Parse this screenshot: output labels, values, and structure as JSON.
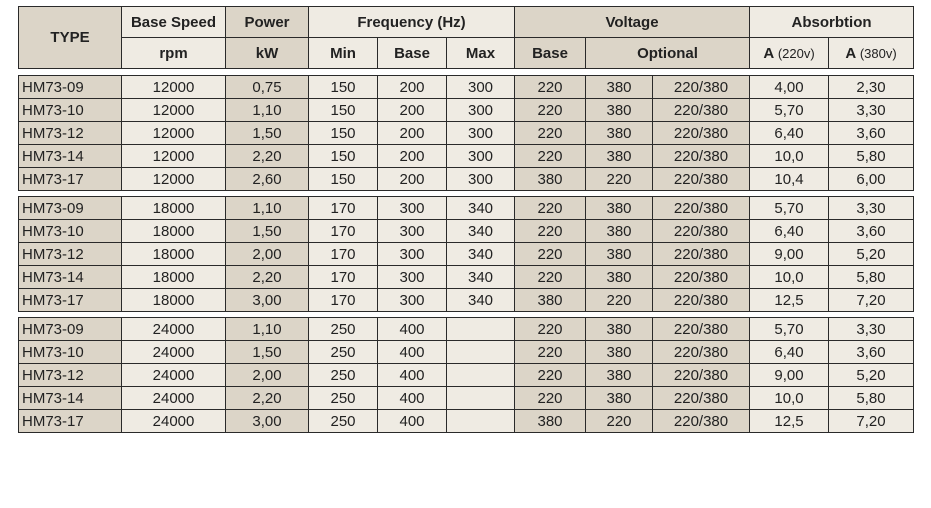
{
  "header": {
    "type": "TYPE",
    "base_speed": "Base Speed",
    "rpm": "rpm",
    "power": "Power",
    "kw": "kW",
    "frequency": "Frequency  (Hz)",
    "freq_min": "Min",
    "freq_base": "Base",
    "freq_max": "Max",
    "voltage": "Voltage",
    "volt_base": "Base",
    "volt_optional": "Optional",
    "absorbtion": "Absorbtion",
    "a220_a": "A",
    "a220_v": "(220v)",
    "a380_a": "A",
    "a380_v": "(380v)"
  },
  "groups": [
    {
      "rows": [
        [
          "HM73-09",
          "12000",
          "0,75",
          "150",
          "200",
          "300",
          "220",
          "380",
          "220/380",
          "4,00",
          "2,30"
        ],
        [
          "HM73-10",
          "12000",
          "1,10",
          "150",
          "200",
          "300",
          "220",
          "380",
          "220/380",
          "5,70",
          "3,30"
        ],
        [
          "HM73-12",
          "12000",
          "1,50",
          "150",
          "200",
          "300",
          "220",
          "380",
          "220/380",
          "6,40",
          "3,60"
        ],
        [
          "HM73-14",
          "12000",
          "2,20",
          "150",
          "200",
          "300",
          "220",
          "380",
          "220/380",
          "10,0",
          "5,80"
        ],
        [
          "HM73-17",
          "12000",
          "2,60",
          "150",
          "200",
          "300",
          "380",
          "220",
          "220/380",
          "10,4",
          "6,00"
        ]
      ]
    },
    {
      "rows": [
        [
          "HM73-09",
          "18000",
          "1,10",
          "170",
          "300",
          "340",
          "220",
          "380",
          "220/380",
          "5,70",
          "3,30"
        ],
        [
          "HM73-10",
          "18000",
          "1,50",
          "170",
          "300",
          "340",
          "220",
          "380",
          "220/380",
          "6,40",
          "3,60"
        ],
        [
          "HM73-12",
          "18000",
          "2,00",
          "170",
          "300",
          "340",
          "220",
          "380",
          "220/380",
          "9,00",
          "5,20"
        ],
        [
          "HM73-14",
          "18000",
          "2,20",
          "170",
          "300",
          "340",
          "220",
          "380",
          "220/380",
          "10,0",
          "5,80"
        ],
        [
          "HM73-17",
          "18000",
          "3,00",
          "170",
          "300",
          "340",
          "380",
          "220",
          "220/380",
          "12,5",
          "7,20"
        ]
      ]
    },
    {
      "rows": [
        [
          "HM73-09",
          "24000",
          "1,10",
          "250",
          "400",
          "",
          "220",
          "380",
          "220/380",
          "5,70",
          "3,30"
        ],
        [
          "HM73-10",
          "24000",
          "1,50",
          "250",
          "400",
          "",
          "220",
          "380",
          "220/380",
          "6,40",
          "3,60"
        ],
        [
          "HM73-12",
          "24000",
          "2,00",
          "250",
          "400",
          "",
          "220",
          "380",
          "220/380",
          "9,00",
          "5,20"
        ],
        [
          "HM73-14",
          "24000",
          "2,20",
          "250",
          "400",
          "",
          "220",
          "380",
          "220/380",
          "10,0",
          "5,80"
        ],
        [
          "HM73-17",
          "24000",
          "3,00",
          "250",
          "400",
          "",
          "380",
          "220",
          "220/380",
          "12,5",
          "7,20"
        ]
      ]
    }
  ]
}
